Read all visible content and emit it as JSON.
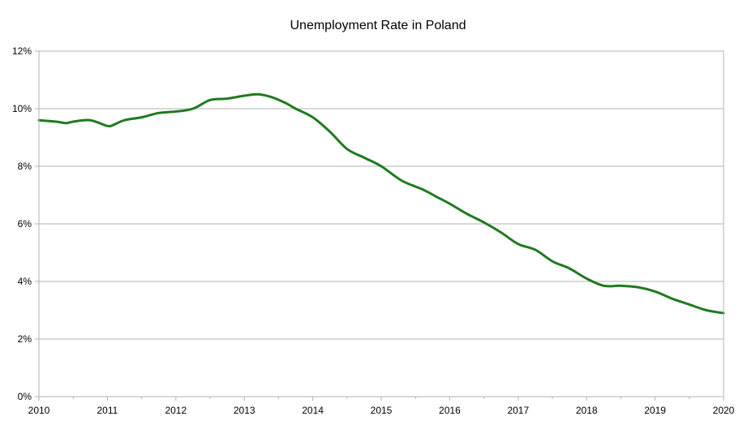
{
  "chart_data": {
    "type": "line",
    "title": "Unemployment Rate in Poland",
    "xlabel": "",
    "ylabel": "",
    "xlim": [
      2010,
      2020
    ],
    "ylim": [
      0,
      12
    ],
    "x_ticks": [
      "2010",
      "2011",
      "2012",
      "2013",
      "2014",
      "2015",
      "2016",
      "2017",
      "2018",
      "2019",
      "2020"
    ],
    "y_ticks": [
      "0%",
      "2%",
      "4%",
      "6%",
      "8%",
      "10%",
      "12%"
    ],
    "grid": "horizontal",
    "legend": "none",
    "series": [
      {
        "color": "#1f7a1f",
        "x": [
          2010.0,
          2010.25,
          2010.4,
          2010.5,
          2010.75,
          2011.0,
          2011.1,
          2011.25,
          2011.5,
          2011.75,
          2012.0,
          2012.25,
          2012.5,
          2012.75,
          2013.0,
          2013.2,
          2013.4,
          2013.6,
          2013.75,
          2014.0,
          2014.25,
          2014.5,
          2014.75,
          2015.0,
          2015.3,
          2015.6,
          2015.8,
          2016.0,
          2016.25,
          2016.5,
          2016.75,
          2017.0,
          2017.25,
          2017.5,
          2017.75,
          2018.0,
          2018.25,
          2018.5,
          2018.75,
          2019.0,
          2019.25,
          2019.5,
          2019.75,
          2020.0
        ],
        "y": [
          9.6,
          9.55,
          9.5,
          9.55,
          9.6,
          9.4,
          9.45,
          9.6,
          9.7,
          9.85,
          9.9,
          10.0,
          10.3,
          10.35,
          10.45,
          10.5,
          10.4,
          10.2,
          10.0,
          9.7,
          9.2,
          8.6,
          8.3,
          8.0,
          7.5,
          7.2,
          6.95,
          6.7,
          6.35,
          6.05,
          5.7,
          5.3,
          5.1,
          4.7,
          4.45,
          4.1,
          3.85,
          3.85,
          3.8,
          3.65,
          3.4,
          3.2,
          3.0,
          2.9
        ]
      }
    ]
  }
}
